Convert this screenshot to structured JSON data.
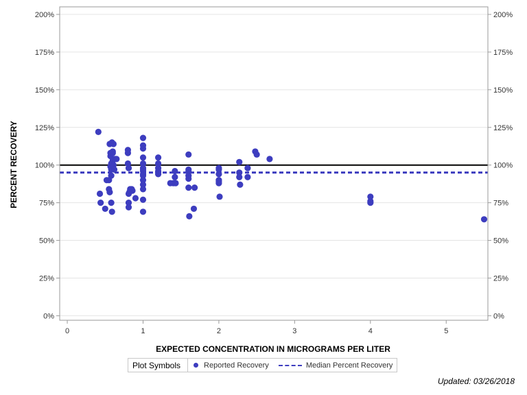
{
  "chart_data": {
    "type": "scatter",
    "title": "",
    "xlabel": "EXPECTED CONCENTRATION IN MICROGRAMS PER LITER",
    "ylabel": "PERCENT RECOVERY",
    "xlim": [
      -0.1,
      5.55
    ],
    "ylim": [
      -3,
      205
    ],
    "x_ticks": [
      0,
      1,
      2,
      3,
      4,
      5
    ],
    "y_ticks": [
      0,
      25,
      50,
      75,
      100,
      125,
      150,
      175,
      200
    ],
    "y_tick_labels": [
      "0%",
      "25%",
      "50%",
      "75%",
      "100%",
      "125%",
      "150%",
      "175%",
      "200%"
    ],
    "grid": true,
    "reference_line": {
      "value": 100,
      "color": "#000000"
    },
    "median_line": {
      "name": "Median Percent Recovery",
      "value": 95,
      "color": "#3d3dbf"
    },
    "series": [
      {
        "name": "Reported Recovery",
        "color": "#3d3dbf",
        "x": [
          0.41,
          0.43,
          0.44,
          0.5,
          0.52,
          0.55,
          0.55,
          0.56,
          0.56,
          0.57,
          0.57,
          0.57,
          0.58,
          0.58,
          0.58,
          0.58,
          0.59,
          0.59,
          0.6,
          0.6,
          0.6,
          0.6,
          0.61,
          0.61,
          0.62,
          0.63,
          0.65,
          0.8,
          0.8,
          0.8,
          0.81,
          0.81,
          0.81,
          0.81,
          0.82,
          0.83,
          0.85,
          0.86,
          0.9,
          1.0,
          1.0,
          1.0,
          1.0,
          1.0,
          1.0,
          1.0,
          1.0,
          1.0,
          1.0,
          1.0,
          1.0,
          1.0,
          1.0,
          1.0,
          1.2,
          1.2,
          1.2,
          1.2,
          1.2,
          1.2,
          1.36,
          1.4,
          1.42,
          1.42,
          1.43,
          1.6,
          1.6,
          1.6,
          1.6,
          1.6,
          1.6,
          1.61,
          1.67,
          1.68,
          2.0,
          2.0,
          2.0,
          2.0,
          2.0,
          2.0,
          2.01,
          2.27,
          2.27,
          2.27,
          2.28,
          2.38,
          2.38,
          2.48,
          2.5,
          2.67,
          4.0,
          4.0,
          4.0,
          5.5
        ],
        "y": [
          122,
          81,
          75,
          71,
          90,
          90,
          84,
          82,
          114,
          106,
          108,
          99,
          97,
          101,
          93,
          75,
          69,
          115,
          109,
          108,
          103,
          99,
          100,
          114,
          97,
          104,
          104,
          110,
          108,
          101,
          98,
          81,
          75,
          72,
          82,
          84,
          84,
          83,
          78,
          118,
          113,
          111,
          105,
          101,
          98,
          97,
          96,
          94,
          93,
          90,
          87,
          84,
          77,
          69,
          105,
          101,
          98,
          96,
          95,
          94,
          88,
          88,
          96,
          92,
          88,
          107,
          97,
          96,
          93,
          91,
          85,
          66,
          71,
          85,
          98,
          97,
          94,
          90,
          88,
          89,
          79,
          102,
          95,
          92,
          87,
          98,
          92,
          109,
          107,
          104,
          79,
          76,
          75,
          64
        ]
      }
    ]
  },
  "legend": {
    "title": "Plot Symbols",
    "items": [
      "Reported Recovery",
      "Median Percent Recovery"
    ]
  },
  "footer": {
    "updated": "Updated: 03/26/2018"
  }
}
